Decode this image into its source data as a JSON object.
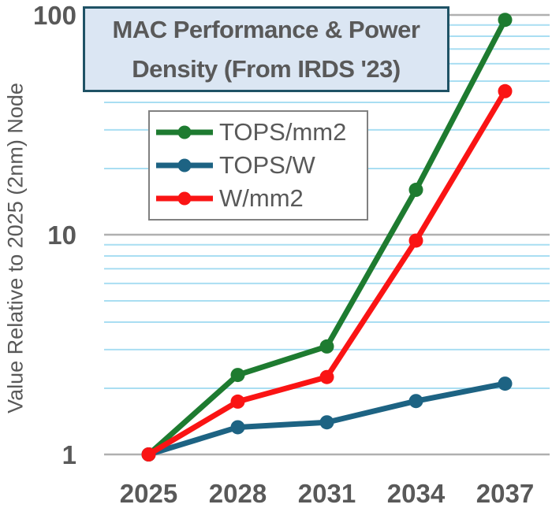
{
  "title": {
    "line1": "MAC Performance & Power",
    "line2": "Density (From IRDS '23)"
  },
  "y_axis": {
    "label": "Value Relative to 2025 (2nm) Node",
    "scale": "log",
    "major_ticks": [
      {
        "value": 1,
        "label": "1"
      },
      {
        "value": 10,
        "label": "10"
      },
      {
        "value": 100,
        "label": "100"
      }
    ]
  },
  "x_axis": {
    "categories": [
      "2025",
      "2028",
      "2031",
      "2034",
      "2037"
    ]
  },
  "legend": {
    "items": [
      {
        "label": "TOPS/mm2",
        "color": "#1e7b30"
      },
      {
        "label": "TOPS/W",
        "color": "#1d6383"
      },
      {
        "label": "W/mm2",
        "color": "#fa1414"
      }
    ]
  },
  "colors": {
    "text_gray": "#595959",
    "grid_major": "#b0b0b0",
    "grid_minor": "#a9def2",
    "title_box_fill": "#dbe6f3",
    "title_box_border": "#1f5265",
    "legend_border": "#808080",
    "series_green": "#1e7b30",
    "series_blue": "#1d6383",
    "series_red": "#fa1414"
  },
  "chart_data": {
    "type": "line",
    "title": "MAC Performance & Power Density (From IRDS '23)",
    "ylabel": "Value Relative to 2025 (2nm) Node",
    "yscale": "log",
    "ylim": [
      1,
      100
    ],
    "grid": true,
    "legend_position": "upper-left",
    "x": [
      2025,
      2028,
      2031,
      2034,
      2037
    ],
    "categories": [
      "2025",
      "2028",
      "2031",
      "2034",
      "2037"
    ],
    "minor_gridlines": [
      2,
      3,
      4,
      5,
      6,
      7,
      8,
      9,
      20,
      30,
      40,
      50,
      60,
      70,
      80,
      90
    ],
    "major_gridlines": [
      1,
      10,
      100
    ],
    "series": [
      {
        "name": "TOPS/mm2",
        "color": "#1e7b30",
        "values": [
          1,
          2.3,
          3.1,
          16,
          95
        ]
      },
      {
        "name": "TOPS/W",
        "color": "#1d6383",
        "values": [
          1,
          1.33,
          1.4,
          1.75,
          2.1
        ]
      },
      {
        "name": "W/mm2",
        "color": "#fa1414",
        "values": [
          1,
          1.74,
          2.25,
          9.4,
          45
        ]
      }
    ]
  }
}
